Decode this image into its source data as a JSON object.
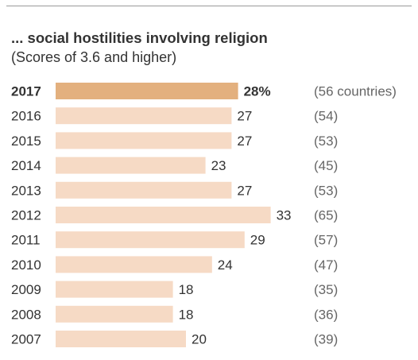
{
  "chart_data": {
    "type": "bar",
    "orientation": "horizontal",
    "title": "... social hostilities involving religion",
    "subtitle": "(Scores of 3.6 and higher)",
    "categories": [
      "2017",
      "2016",
      "2015",
      "2014",
      "2013",
      "2012",
      "2011",
      "2010",
      "2009",
      "2008",
      "2007"
    ],
    "values": [
      28,
      27,
      27,
      23,
      27,
      33,
      29,
      24,
      18,
      18,
      20
    ],
    "value_labels": [
      "28%",
      "27",
      "27",
      "23",
      "27",
      "33",
      "29",
      "24",
      "18",
      "18",
      "20"
    ],
    "notes": [
      "(56 countries)",
      "(54)",
      "(53)",
      "(45)",
      "(53)",
      "(65)",
      "(57)",
      "(47)",
      "(35)",
      "(36)",
      "(39)"
    ],
    "highlight_category": "2017",
    "colors": {
      "highlight": "#e3b07e",
      "bar": "#f6dac5"
    },
    "grid": false,
    "legend": "none"
  }
}
